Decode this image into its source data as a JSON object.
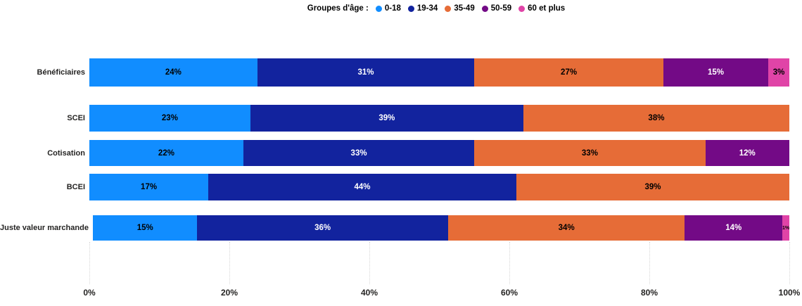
{
  "chart_data": {
    "type": "bar",
    "orientation": "horizontal",
    "stacked": true,
    "legend_title": "Groupes d'âge :",
    "legend_position": "top-center",
    "categories": [
      "Bénéficiaires",
      "SCEI",
      "Cotisation",
      "BCEI",
      "Juste valeur marchande"
    ],
    "series": [
      {
        "name": "0-18",
        "color": "#118DFF",
        "label_color": "#000000",
        "values": [
          24,
          23,
          22,
          17,
          15
        ]
      },
      {
        "name": "19-34",
        "color": "#12239E",
        "label_color": "#FFFFFF",
        "values": [
          31,
          39,
          33,
          44,
          36
        ]
      },
      {
        "name": "35-49",
        "color": "#E66C37",
        "label_color": "#000000",
        "values": [
          27,
          38,
          33,
          39,
          34
        ]
      },
      {
        "name": "50-59",
        "color": "#730A86",
        "label_color": "#FFFFFF",
        "values": [
          15,
          0,
          12,
          0,
          14
        ]
      },
      {
        "name": "60 et plus",
        "color": "#E044A7",
        "label_color": "#000000",
        "values": [
          3,
          0,
          0,
          0,
          1
        ]
      }
    ],
    "value_suffix": "%",
    "x_ticks": [
      "0%",
      "20%",
      "40%",
      "60%",
      "80%",
      "100%"
    ],
    "xlim": [
      0,
      100
    ],
    "grid": "vertical-dotted",
    "background_color": "#FFFFFF"
  }
}
